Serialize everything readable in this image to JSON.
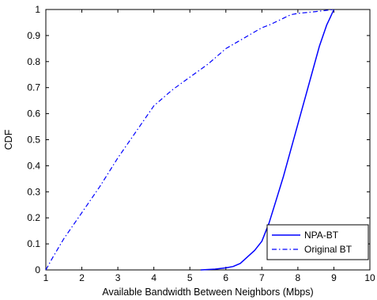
{
  "chart_data": {
    "type": "line",
    "title": "",
    "xlabel": "Available Bandwidth Between Neighbors (Mbps)",
    "ylabel": "CDF",
    "xlim": [
      1,
      10
    ],
    "ylim": [
      0,
      1
    ],
    "xticks": [
      "1",
      "2",
      "3",
      "4",
      "5",
      "6",
      "7",
      "8",
      "9",
      "10"
    ],
    "yticks": [
      "0",
      "0.1",
      "0.2",
      "0.3",
      "0.4",
      "0.5",
      "0.6",
      "0.7",
      "0.8",
      "0.9",
      "1"
    ],
    "grid": false,
    "legend_position": "bottom-right",
    "series": [
      {
        "name": "NPA-BT",
        "style": "solid",
        "color": "#0000ff",
        "x": [
          5.3,
          5.7,
          6.0,
          6.2,
          6.4,
          6.6,
          6.8,
          7.0,
          7.2,
          7.4,
          7.6,
          7.8,
          8.0,
          8.2,
          8.4,
          8.6,
          8.8,
          8.9,
          9.0
        ],
        "y": [
          0.0,
          0.003,
          0.008,
          0.013,
          0.025,
          0.05,
          0.075,
          0.11,
          0.18,
          0.27,
          0.36,
          0.46,
          0.56,
          0.66,
          0.76,
          0.86,
          0.94,
          0.97,
          1.0
        ]
      },
      {
        "name": "Original BT",
        "style": "dashdot",
        "color": "#0000ff",
        "x": [
          1.0,
          1.2,
          1.5,
          2.0,
          2.5,
          3.0,
          3.5,
          4.0,
          4.5,
          5.0,
          5.5,
          6.0,
          6.5,
          7.0,
          7.2,
          7.5,
          7.8,
          8.0,
          8.5,
          9.0
        ],
        "y": [
          0.0,
          0.05,
          0.12,
          0.22,
          0.32,
          0.43,
          0.53,
          0.63,
          0.69,
          0.74,
          0.79,
          0.85,
          0.89,
          0.93,
          0.94,
          0.96,
          0.98,
          0.985,
          0.992,
          1.0
        ]
      }
    ]
  }
}
